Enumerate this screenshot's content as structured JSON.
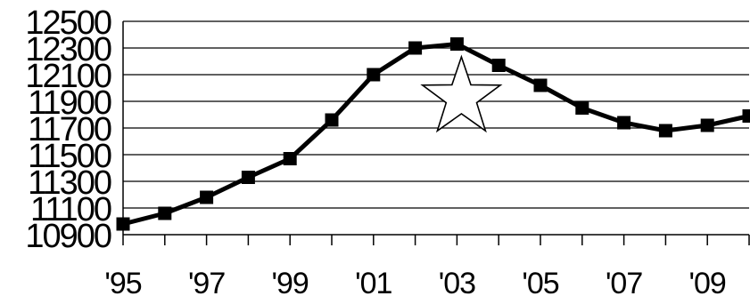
{
  "chart_data": {
    "type": "line",
    "title": "",
    "xlabel": "",
    "ylabel": "",
    "x": [
      "1995",
      "1996",
      "1997",
      "1998",
      "1999",
      "2000",
      "2001",
      "2002",
      "2003",
      "2004",
      "2005",
      "2006",
      "2007",
      "2008",
      "2009",
      "2010"
    ],
    "series": [
      {
        "values": [
          10980,
          11060,
          11180,
          11330,
          11470,
          11760,
          12100,
          12300,
          12330,
          12170,
          12020,
          11850,
          11740,
          11680,
          11720,
          11790
        ]
      }
    ],
    "ylim": [
      10900,
      12500
    ],
    "yticks": [
      10900,
      11100,
      11300,
      11500,
      11700,
      11900,
      12100,
      12300,
      12500
    ],
    "ytick_labels": [
      "10900",
      "11100",
      "11300",
      "11500",
      "11700",
      "11900",
      "12100",
      "12300",
      "12500"
    ],
    "xtick_labels": [
      "'95",
      "'97",
      "'99",
      "'01",
      "'03",
      "'05",
      "'07",
      "'09"
    ],
    "xtick_label_years": [
      "1995",
      "1997",
      "1999",
      "2001",
      "2003",
      "2005",
      "2007",
      "2009"
    ],
    "grid": true,
    "legend": "none",
    "annotation": {
      "shape": "star",
      "near_x": "2003"
    },
    "colors": {
      "line": "#000000",
      "marker": "#000000",
      "grid": "#000000",
      "star_fill": "#ffffff",
      "star_stroke": "#000000"
    }
  }
}
